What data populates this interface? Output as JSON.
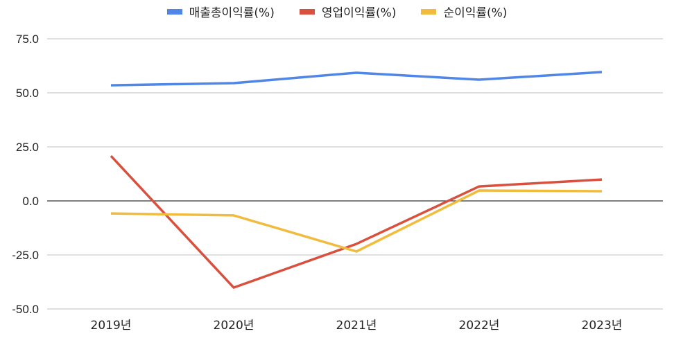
{
  "chart_data": {
    "type": "line",
    "title": "",
    "xlabel": "",
    "ylabel": "",
    "categories": [
      "2019년",
      "2020년",
      "2021년",
      "2022년",
      "2023년"
    ],
    "series": [
      {
        "name": "매출총이익률(%)",
        "color": "#4f86e8",
        "values": [
          53.5,
          54.5,
          59.3,
          56.1,
          59.6
        ]
      },
      {
        "name": "영업이익률(%)",
        "color": "#d9503f",
        "values": [
          20.8,
          -40.1,
          -19.9,
          6.7,
          9.9
        ]
      },
      {
        "name": "순이익률(%)",
        "color": "#f1bc3d",
        "values": [
          -5.8,
          -6.7,
          -23.4,
          4.8,
          4.5
        ]
      }
    ],
    "ylim": [
      -50,
      75
    ],
    "yticks": [
      "75.0",
      "50.0",
      "25.0",
      "0.0",
      "-25.0",
      "-50.0"
    ],
    "ytick_values": [
      75,
      50,
      25,
      0,
      -25,
      -50
    ],
    "grid": true,
    "legend_position": "top"
  }
}
